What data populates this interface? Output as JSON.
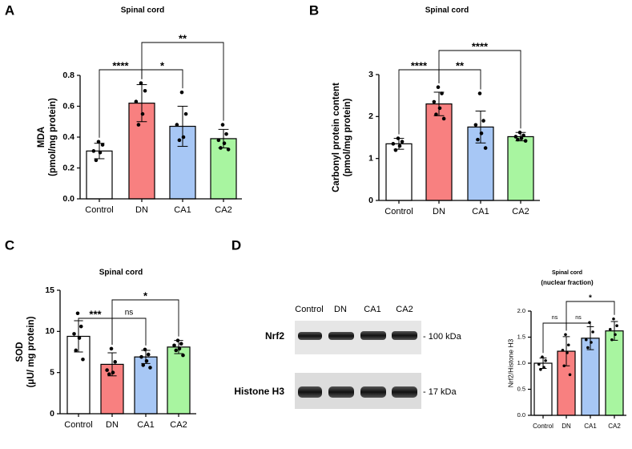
{
  "chart_data": [
    {
      "panel": "A",
      "type": "bar",
      "title": "Spinal cord",
      "ylabel": [
        "MDA",
        "(pmol/mg protein)"
      ],
      "categories": [
        "Control",
        "DN",
        "CA1",
        "CA2"
      ],
      "colors": [
        "#ffffff",
        "#f88080",
        "#a7c7f5",
        "#a8f5a0"
      ],
      "values": [
        0.31,
        0.62,
        0.47,
        0.39
      ],
      "errors": [
        0.05,
        0.12,
        0.13,
        0.06
      ],
      "points": [
        [
          0.37,
          0.35,
          0.31,
          0.3,
          0.25
        ],
        [
          0.75,
          0.7,
          0.63,
          0.55,
          0.48
        ],
        [
          0.69,
          0.55,
          0.48,
          0.4,
          0.38
        ],
        [
          0.48,
          0.42,
          0.38,
          0.36,
          0.33,
          0.32
        ]
      ],
      "ylim": [
        0,
        0.8
      ],
      "yticks": [
        {
          "value": 0,
          "label": "0.0"
        },
        0.2,
        0.4,
        0.6,
        0.8
      ],
      "significance": [
        {
          "groups": [
            "Control",
            "DN"
          ],
          "label": "****"
        },
        {
          "groups": [
            "DN",
            "CA1"
          ],
          "label": "*"
        },
        {
          "groups": [
            "DN",
            "CA2"
          ],
          "label": "**"
        }
      ]
    },
    {
      "panel": "B",
      "type": "bar",
      "title": "Spinal cord",
      "ylabel": [
        "Carbonyl protein content",
        "(pmol/mg protein)"
      ],
      "categories": [
        "Control",
        "DN",
        "CA1",
        "CA2"
      ],
      "colors": [
        "#ffffff",
        "#f88080",
        "#a7c7f5",
        "#a8f5a0"
      ],
      "values": [
        1.35,
        2.3,
        1.75,
        1.52
      ],
      "errors": [
        0.13,
        0.28,
        0.38,
        0.1
      ],
      "points": [
        [
          1.48,
          1.4,
          1.35,
          1.3,
          1.2
        ],
        [
          2.7,
          2.55,
          2.35,
          2.2,
          2.05,
          1.95
        ],
        [
          2.55,
          1.9,
          1.8,
          1.6,
          1.45,
          1.25
        ],
        [
          1.62,
          1.55,
          1.52,
          1.48,
          1.45,
          1.42
        ]
      ],
      "ylim": [
        0,
        3
      ],
      "yticks": [
        0,
        1,
        2,
        3
      ],
      "significance": [
        {
          "groups": [
            "Control",
            "DN"
          ],
          "label": "****"
        },
        {
          "groups": [
            "DN",
            "CA1"
          ],
          "label": "**"
        },
        {
          "groups": [
            "DN",
            "CA2"
          ],
          "label": "****"
        }
      ]
    },
    {
      "panel": "C",
      "type": "bar",
      "title": "Spinal cord",
      "ylabel": [
        "SOD",
        "(μU/ mg protein)"
      ],
      "categories": [
        "Control",
        "DN",
        "CA1",
        "CA2"
      ],
      "colors": [
        "#ffffff",
        "#f88080",
        "#a7c7f5",
        "#a8f5a0"
      ],
      "values": [
        9.4,
        6.0,
        6.9,
        8.1
      ],
      "errors": [
        1.9,
        1.4,
        0.8,
        0.8
      ],
      "points": [
        [
          12.2,
          10.6,
          9.7,
          9.2,
          7.7,
          6.6
        ],
        [
          7.9,
          6.3,
          5.3,
          5.0,
          4.8
        ],
        [
          7.8,
          7.2,
          6.9,
          6.4,
          5.9,
          5.6
        ],
        [
          8.9,
          8.5,
          8.3,
          7.9,
          7.7,
          7.1
        ]
      ],
      "ylim": [
        0,
        15
      ],
      "yticks": [
        0,
        5,
        10,
        15
      ],
      "significance": [
        {
          "groups": [
            "Control",
            "DN"
          ],
          "label": "***"
        },
        {
          "groups": [
            "DN",
            "CA1"
          ],
          "label": "ns"
        },
        {
          "groups": [
            "DN",
            "CA2"
          ],
          "label": "*"
        }
      ]
    },
    {
      "panel": "D",
      "type": "bar",
      "title": "Spinal cord",
      "subtitle": "(nuclear fraction)",
      "ylabel": [
        "Nrf2/Histone H3"
      ],
      "categories": [
        "Control",
        "DN",
        "CA1",
        "CA2"
      ],
      "colors": [
        "#ffffff",
        "#f88080",
        "#a7c7f5",
        "#a8f5a0"
      ],
      "values": [
        1.0,
        1.23,
        1.48,
        1.62
      ],
      "errors": [
        0.1,
        0.28,
        0.22,
        0.18
      ],
      "points": [
        [
          1.12,
          1.05,
          0.98,
          0.92,
          0.88
        ],
        [
          1.55,
          1.35,
          1.25,
          1.2,
          0.95,
          0.78
        ],
        [
          1.78,
          1.6,
          1.45,
          1.4,
          1.3
        ],
        [
          1.85,
          1.72,
          1.65,
          1.55,
          1.45
        ]
      ],
      "ylim": [
        0,
        2
      ],
      "yticks": [
        {
          "value": 0,
          "label": "0.0"
        },
        0.5,
        {
          "value": 1,
          "label": "1.0"
        },
        1.5,
        {
          "value": 2,
          "label": "2.0"
        }
      ],
      "significance": [
        {
          "groups": [
            "Control",
            "DN"
          ],
          "label": "ns"
        },
        {
          "groups": [
            "DN",
            "CA1"
          ],
          "label": "ns"
        },
        {
          "groups": [
            "DN",
            "CA2"
          ],
          "label": "*"
        }
      ],
      "blot": {
        "lanes": [
          "Control",
          "DN",
          "CA1",
          "CA2"
        ],
        "rows": [
          {
            "label": "Nrf2",
            "marker": "- 100 kDa"
          },
          {
            "label": "Histone H3",
            "marker": "- 17 kDa"
          }
        ]
      }
    }
  ]
}
